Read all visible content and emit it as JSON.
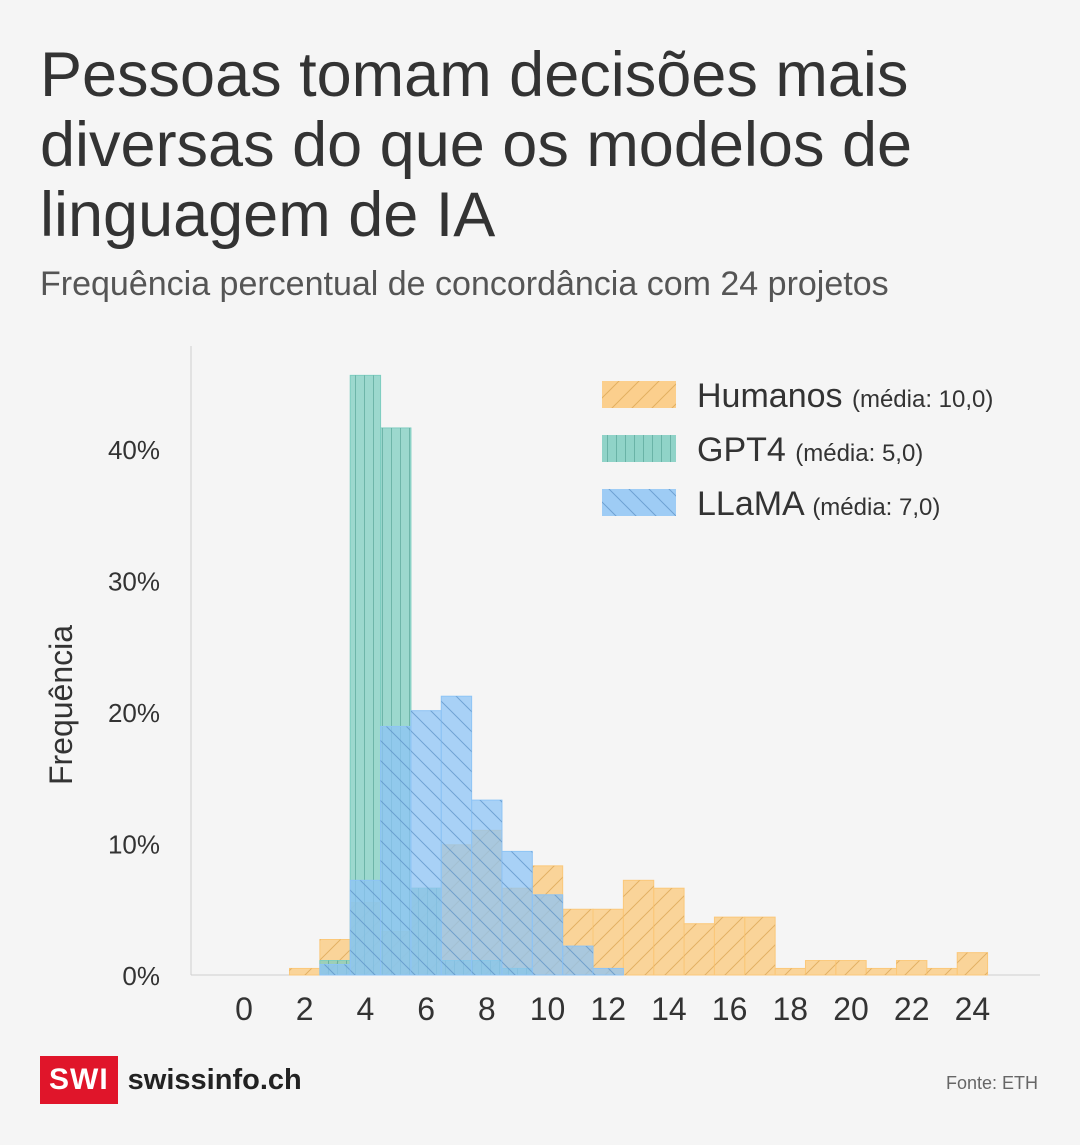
{
  "title": "Pessoas tomam decisões mais diversas do que os modelos de linguagem de IA",
  "subtitle": "Frequência percentual de concordância com 24 projetos",
  "footer": {
    "logo_mark": "SWI",
    "logo_text": "swissinfo.ch",
    "source": "Fonte: ETH"
  },
  "colors": {
    "humanos": "#fbc87a",
    "gpt4": "#7ecdc0",
    "llama": "#8ec4f5",
    "grid": "#cfcfcf"
  },
  "chart_data": {
    "type": "bar",
    "ylabel": "Frequência",
    "xlabel": "",
    "xlim": [
      -1,
      27
    ],
    "ylim": [
      0,
      48
    ],
    "x_ticks": [
      "0",
      "2",
      "4",
      "6",
      "8",
      "10",
      "12",
      "14",
      "16",
      "18",
      "20",
      "22",
      "24"
    ],
    "x_tick_values": [
      0,
      2,
      4,
      6,
      8,
      10,
      12,
      14,
      16,
      18,
      20,
      22,
      24
    ],
    "y_ticks": [
      "0%",
      "10%",
      "20%",
      "30%",
      "40%"
    ],
    "y_tick_values": [
      0,
      10,
      20,
      30,
      40
    ],
    "bin_starts": [
      2,
      3,
      4,
      5,
      6,
      7,
      8,
      9,
      10,
      11,
      12,
      13,
      14,
      15,
      16,
      17,
      18,
      19,
      20,
      21,
      22,
      23,
      24,
      25
    ],
    "legend_position": "top-right",
    "series": [
      {
        "key": "humanos",
        "name": "Humanos",
        "note": "(média: 10,0)",
        "pattern": "diag-right",
        "values": [
          0.5,
          2.7,
          5.5,
          3.3,
          6.6,
          9.9,
          11.0,
          6.6,
          8.3,
          5.0,
          5.0,
          7.2,
          6.6,
          3.9,
          4.4,
          4.4,
          0.5,
          1.1,
          1.1,
          0.5,
          1.1,
          0.5,
          1.7,
          0
        ]
      },
      {
        "key": "gpt4",
        "name": "GPT4",
        "note": "(média: 5,0)",
        "pattern": "vertical",
        "values": [
          0,
          1.1,
          45.6,
          41.6,
          6.6,
          1.1,
          1.1,
          0.5,
          0,
          0,
          0,
          0,
          0,
          0,
          0,
          0,
          0,
          0,
          0,
          0,
          0,
          0,
          0,
          0
        ]
      },
      {
        "key": "llama",
        "name": "LLaMA",
        "note": "(média: 7,0)",
        "pattern": "diag-left",
        "values": [
          0,
          0.8,
          7.2,
          18.9,
          20.1,
          21.2,
          13.3,
          9.4,
          6.1,
          2.2,
          0.5,
          0,
          0,
          0,
          0,
          0,
          0,
          0,
          0,
          0,
          0,
          0,
          0,
          0
        ]
      }
    ]
  }
}
